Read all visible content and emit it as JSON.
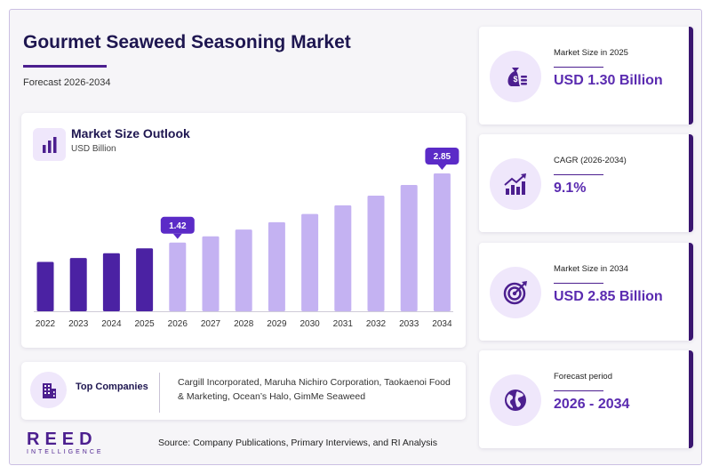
{
  "header": {
    "title": "Gourmet Seaweed Seasoning Market",
    "subtitle": "Forecast 2026-2034"
  },
  "chart_panel": {
    "title": "Market Size Outlook",
    "unit": "USD Billion"
  },
  "chart_data": {
    "type": "bar",
    "categories": [
      "2022",
      "2023",
      "2024",
      "2025",
      "2026",
      "2027",
      "2028",
      "2029",
      "2030",
      "2031",
      "2032",
      "2033",
      "2034"
    ],
    "values": [
      1.02,
      1.1,
      1.2,
      1.3,
      1.42,
      1.55,
      1.69,
      1.84,
      2.01,
      2.19,
      2.39,
      2.61,
      2.85
    ],
    "ylim": [
      0,
      2.85
    ],
    "annotations": [
      {
        "category": "2026",
        "label": "1.42"
      },
      {
        "category": "2034",
        "label": "2.85"
      }
    ],
    "historical_color": "#4b22a3",
    "forecast_color": "#c4b2f2",
    "forecast_start_index": 4,
    "grid": false
  },
  "companies": {
    "label": "Top Companies",
    "text": "Cargill Incorporated, Maruha Nichiro Corporation, Taokaenoi Food & Marketing, Ocean’s Halo, GimMe Seaweed"
  },
  "logo": {
    "main": "REED",
    "sub": "INTELLIGENCE"
  },
  "source": "Source: Company Publications, Primary Interviews, and RI Analysis",
  "cards": [
    {
      "label": "Market Size in 2025",
      "value": "USD 1.30 Billion",
      "icon": "money-bag-icon"
    },
    {
      "label": "CAGR (2026-2034)",
      "value": "9.1%",
      "icon": "growth-chart-icon"
    },
    {
      "label": "Market Size in 2034",
      "value": "USD 2.85 Billion",
      "icon": "target-icon"
    },
    {
      "label": "Forecast period",
      "value": "2026 - 2034",
      "icon": "globe-icon"
    }
  ],
  "colors": {
    "accent": "#4c1f8f",
    "value_text": "#5a2bb0",
    "icon_bg": "#efe7fb"
  }
}
